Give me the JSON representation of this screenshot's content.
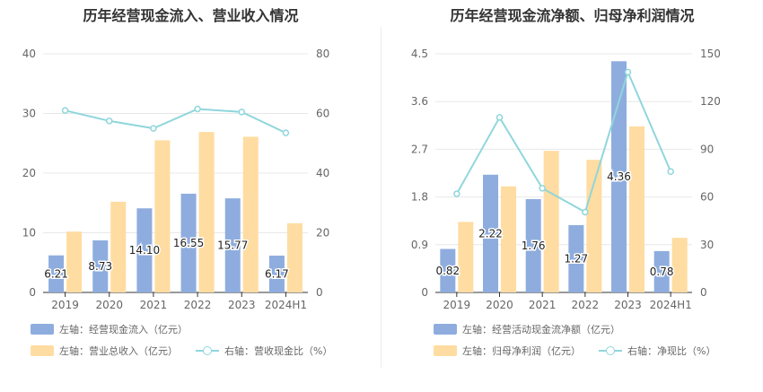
{
  "colors": {
    "bar_primary": "#8eadde",
    "bar_secondary": "#ffdca1",
    "line": "#8fd6dc",
    "grid": "#e8e8e8",
    "axis_text": "#666666"
  },
  "charts": [
    {
      "title": "历年经营现金流入、营业收入情况",
      "legend": [
        {
          "label": "左轴：经营现金流入（亿元）",
          "kind": "bar-primary"
        },
        {
          "label": "左轴：营业总收入（亿元）",
          "kind": "bar-secondary"
        },
        {
          "label": "右轴：营收现金比（%）",
          "kind": "line"
        }
      ]
    },
    {
      "title": "历年经营现金流净额、归母净利润情况",
      "legend": [
        {
          "label": "左轴：经营活动现金流净额（亿元）",
          "kind": "bar-primary"
        },
        {
          "label": "左轴：归母净利润（亿元）",
          "kind": "bar-secondary"
        },
        {
          "label": "右轴：净现比（%）",
          "kind": "line"
        }
      ]
    }
  ],
  "chart_data": [
    {
      "type": "bar",
      "title": "历年经营现金流入、营业收入情况",
      "categories": [
        "2019",
        "2020",
        "2021",
        "2022",
        "2023",
        "2024H1"
      ],
      "y_left": {
        "range": [
          0,
          40
        ],
        "ticks": [
          "0",
          "10",
          "20",
          "30",
          "40"
        ]
      },
      "y_right": {
        "range": [
          0,
          80
        ],
        "ticks": [
          "0",
          "20",
          "40",
          "60",
          "80"
        ]
      },
      "grid": true,
      "legend_position": "bottom",
      "series": [
        {
          "name": "左轴：经营现金流入（亿元）",
          "type": "bar",
          "axis": "left",
          "values": [
            6.21,
            8.73,
            14.1,
            16.55,
            15.77,
            6.17
          ],
          "labels": [
            "6.21",
            "8.73",
            "14.10",
            "16.55",
            "15.77",
            "6.17"
          ]
        },
        {
          "name": "左轴：营业总收入（亿元）",
          "type": "bar",
          "axis": "left",
          "values": [
            10.2,
            15.2,
            25.5,
            26.9,
            26.1,
            11.6
          ]
        },
        {
          "name": "右轴：营收现金比（%）",
          "type": "line",
          "axis": "right",
          "values": [
            61,
            57.5,
            55,
            61.5,
            60.5,
            53.5
          ]
        }
      ]
    },
    {
      "type": "bar",
      "title": "历年经营现金流净额、归母净利润情况",
      "categories": [
        "2019",
        "2020",
        "2021",
        "2022",
        "2023",
        "2024H1"
      ],
      "y_left": {
        "range": [
          0,
          4.5
        ],
        "ticks": [
          "0",
          "0.9",
          "1.8",
          "2.7",
          "3.6",
          "4.5"
        ]
      },
      "y_right": {
        "range": [
          0,
          150
        ],
        "ticks": [
          "0",
          "30",
          "60",
          "90",
          "120",
          "150"
        ]
      },
      "grid": true,
      "legend_position": "bottom",
      "series": [
        {
          "name": "左轴：经营活动现金流净额（亿元）",
          "type": "bar",
          "axis": "left",
          "values": [
            0.82,
            2.22,
            1.76,
            1.27,
            4.36,
            0.78
          ],
          "labels": [
            "0.82",
            "2.22",
            "1.76",
            "1.27",
            "4.36",
            "0.78"
          ]
        },
        {
          "name": "左轴：归母净利润（亿元）",
          "type": "bar",
          "axis": "left",
          "values": [
            1.33,
            2.0,
            2.67,
            2.5,
            3.13,
            1.03
          ]
        },
        {
          "name": "右轴：净现比（%）",
          "type": "line",
          "axis": "right",
          "values": [
            62,
            110,
            65.5,
            50.5,
            138.5,
            76
          ]
        }
      ]
    }
  ]
}
